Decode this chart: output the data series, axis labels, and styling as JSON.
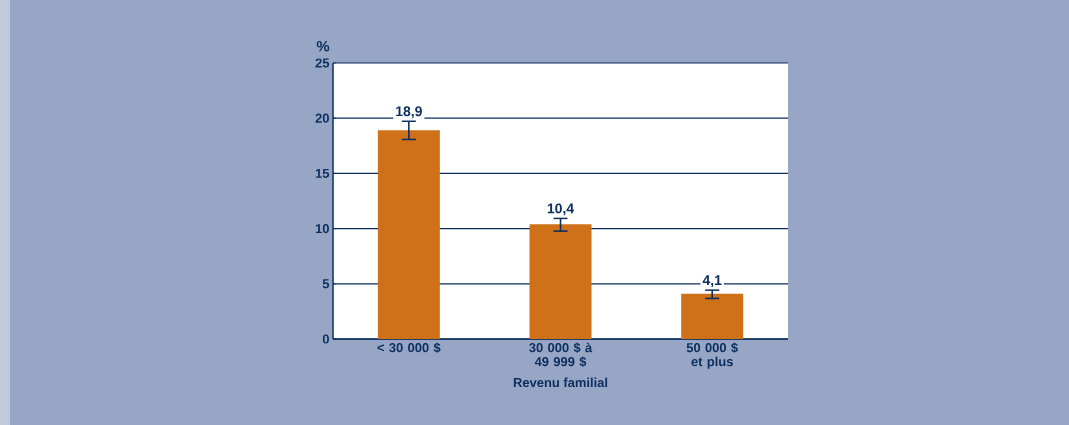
{
  "chart_data": {
    "type": "bar",
    "ylabel": "%",
    "xlabel": "Revenu familial",
    "categories": [
      "< 30 000 $",
      "30 000 $ à 49 999 $",
      "50 000 $ et plus"
    ],
    "values": [
      18.9,
      10.4,
      4.1
    ],
    "value_labels": [
      "18,9",
      "10,4",
      "4,1"
    ],
    "errors": [
      [
        18.0,
        19.8
      ],
      [
        9.7,
        11.0
      ],
      [
        3.6,
        4.5
      ]
    ],
    "color": "#cf7119",
    "ylim": [
      0,
      25
    ],
    "yticks": [
      0,
      5,
      10,
      15,
      20,
      25
    ],
    "grid": "y"
  }
}
